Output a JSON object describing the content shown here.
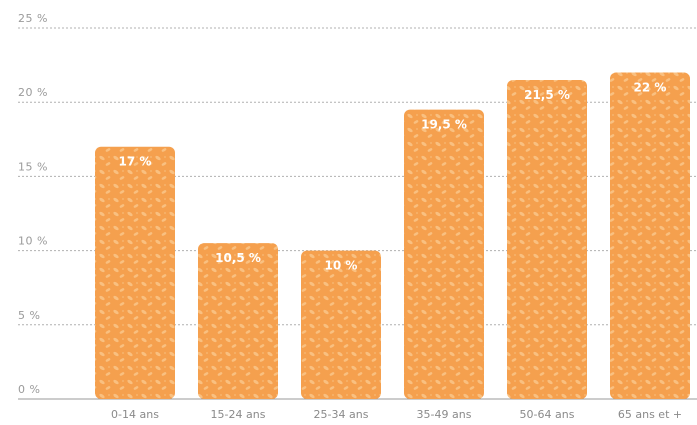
{
  "colors": {
    "bar": "#f5a04e",
    "bar_texture": "#f9c080"
  },
  "chart_data": {
    "type": "bar",
    "title": "",
    "xlabel": "",
    "ylabel": "",
    "ylim": [
      0,
      25
    ],
    "yticks": [
      {
        "value": 0,
        "label": "0 %"
      },
      {
        "value": 5,
        "label": "5 %"
      },
      {
        "value": 10,
        "label": "10 %"
      },
      {
        "value": 15,
        "label": "15 %"
      },
      {
        "value": 20,
        "label": "20 %"
      },
      {
        "value": 25,
        "label": "25 %"
      }
    ],
    "grid": true,
    "categories": [
      "0-14 ans",
      "15-24 ans",
      "25-34 ans",
      "35-49 ans",
      "50-64 ans",
      "65 ans et +"
    ],
    "values": [
      17,
      10.5,
      10,
      19.5,
      21.5,
      22
    ],
    "value_labels": [
      "17 %",
      "10,5 %",
      "10 %",
      "19,5 %",
      "21,5 %",
      "22 %"
    ]
  }
}
